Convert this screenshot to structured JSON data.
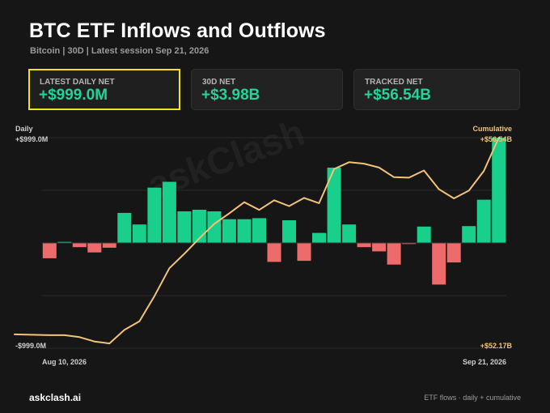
{
  "header": {
    "title": "BTC ETF Inflows and Outflows",
    "subtitle": "Bitcoin | 30D | Latest session Sep 21, 2026"
  },
  "cards": [
    {
      "label": "LATEST DAILY NET",
      "value": "+$999.0M"
    },
    {
      "label": "30D NET",
      "value": "+$3.98B"
    },
    {
      "label": "TRACKED NET",
      "value": "+$56.54B"
    }
  ],
  "watermark": "askClash",
  "footer": {
    "brand": "askclash.ai",
    "note": "ETF flows · daily + cumulative"
  },
  "colors": {
    "inflow": "#19cf8c",
    "outflow": "#ee6b6b",
    "cumulative": "#f3c37a",
    "highlight": "#f3e31a"
  },
  "chart_data": {
    "type": "bar",
    "left_axis_label": "Daily",
    "right_axis_label": "Cumulative",
    "left_ticks": {
      "top": "+$999.0M",
      "bottom": "-$999.0M"
    },
    "right_ticks": {
      "top": "+$56.54B",
      "bottom": "+$52.17B"
    },
    "x_labels": {
      "start": "Aug 10, 2026",
      "end": "Sep 21, 2026"
    },
    "daily_ylim": [
      -999,
      999
    ],
    "cumulative_ylim": [
      52.17,
      56.54
    ],
    "daily_net_musd": [
      -145,
      10,
      -40,
      -90,
      -45,
      285,
      175,
      525,
      580,
      300,
      315,
      300,
      225,
      225,
      235,
      -180,
      215,
      -170,
      95,
      715,
      175,
      -40,
      -80,
      -205,
      -10,
      155,
      -395,
      -185,
      160,
      410,
      999
    ],
    "cumulative_busd": [
      52.44,
      52.44,
      52.4,
      52.31,
      52.27,
      52.55,
      52.73,
      53.25,
      53.83,
      54.13,
      54.45,
      54.75,
      54.97,
      55.2,
      55.04,
      55.24,
      55.12,
      55.29,
      55.18,
      55.89,
      56.03,
      56.0,
      55.92,
      55.72,
      55.71,
      55.86,
      55.47,
      55.28,
      55.44,
      55.85,
      56.54
    ],
    "series": [
      {
        "name": "",
        "type": "bar"
      },
      {
        "name": "",
        "type": "line"
      }
    ],
    "grid": true
  }
}
